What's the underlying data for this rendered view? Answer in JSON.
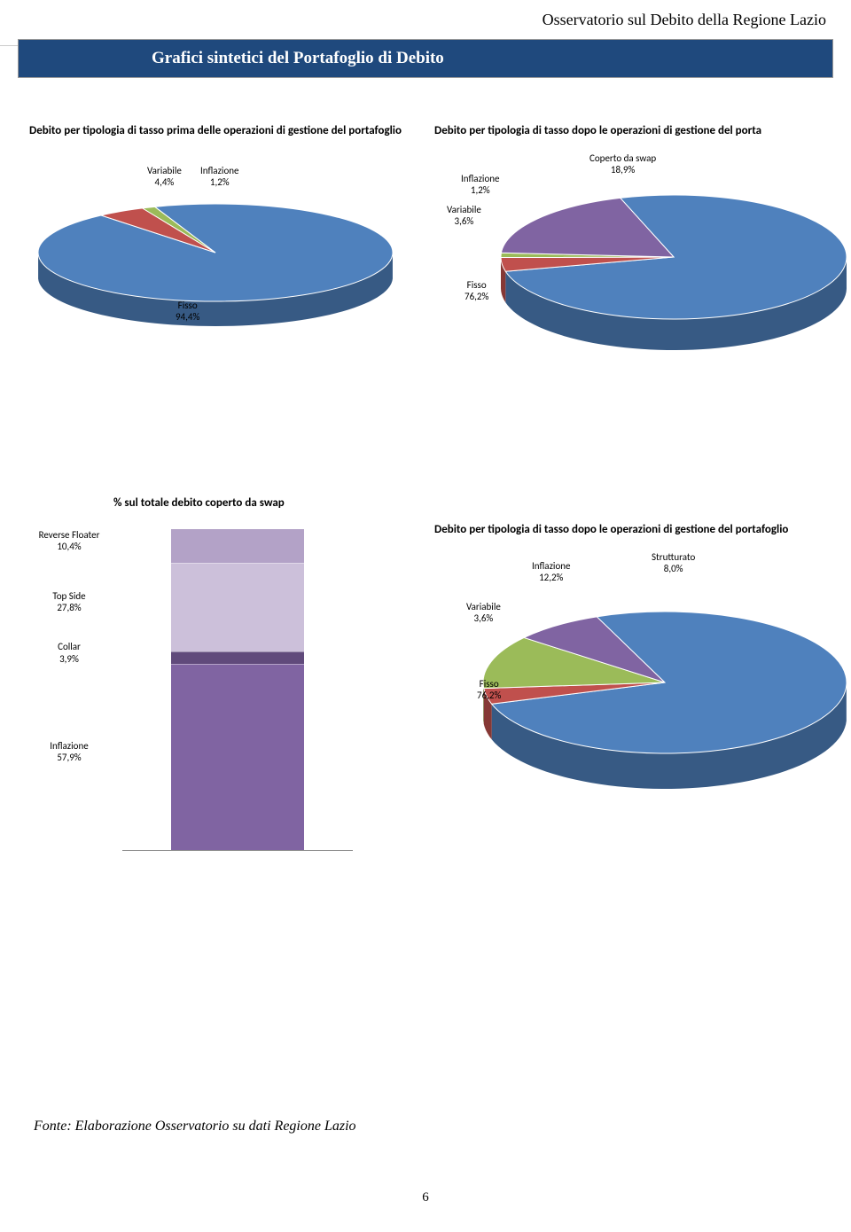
{
  "header": "Osservatorio sul Debito della Regione Lazio",
  "banner": "Grafici sintetici del Portafoglio di Debito",
  "source": "Fonte: Elaborazione Osservatorio su dati Regione Lazio",
  "page_number": "6",
  "colors": {
    "fisso": "#4f81bd",
    "fisso_edge": "#385d8a",
    "variabile": "#c0504d",
    "variabile_edge": "#8c3836",
    "inflazione": "#9bbb59",
    "inflazione_edge": "#71893f",
    "swap": "#8064a2",
    "swap_edge": "#5c4776",
    "strutturato": "#8064a2",
    "reverse": "#b3a2c7",
    "topside": "#ccc0da",
    "collar": "#604a7b",
    "banner": "#1f497d"
  },
  "pie1": {
    "title": "Debito per tipologia di tasso prima delle operazioni di gestione del portafoglio",
    "type": "pie-3d",
    "labels": {
      "variabile": {
        "name": "Variabile",
        "pct": "4,4%"
      },
      "inflazione": {
        "name": "Inflazione",
        "pct": "1,2%"
      },
      "fisso": {
        "name": "Fisso",
        "pct": "94,4%"
      }
    },
    "slices": [
      {
        "key": "fisso",
        "value": 94.4
      },
      {
        "key": "variabile",
        "value": 4.4
      },
      {
        "key": "inflazione",
        "value": 1.2
      }
    ]
  },
  "pie2": {
    "title": "Debito per tipologia di tasso dopo le operazioni di gestione del porta",
    "type": "pie-3d",
    "labels": {
      "inflazione": {
        "name": "Inflazione",
        "pct": "1,2%"
      },
      "variabile": {
        "name": "Variabile",
        "pct": "3,6%"
      },
      "fisso": {
        "name": "Fisso",
        "pct": "76,2%"
      },
      "swap": {
        "name": "Coperto da swap",
        "pct": "18,9%"
      }
    },
    "slices": [
      {
        "key": "fisso",
        "value": 76.2
      },
      {
        "key": "variabile",
        "value": 3.6
      },
      {
        "key": "inflazione",
        "value": 1.2
      },
      {
        "key": "swap",
        "value": 18.9
      }
    ]
  },
  "stack": {
    "title": "% sul totale debito coperto da swap",
    "type": "stacked-bar",
    "segments": [
      {
        "key": "reverse",
        "label": "Reverse Floater",
        "pct_txt": "10,4%",
        "value": 10.4
      },
      {
        "key": "topside",
        "label": "Top Side",
        "pct_txt": "27,8%",
        "value": 27.8
      },
      {
        "key": "collar",
        "label": "Collar",
        "pct_txt": "3,9%",
        "value": 3.9
      },
      {
        "key": "inflazione_s",
        "label": "Inflazione",
        "pct_txt": "57,9%",
        "value": 57.9
      }
    ]
  },
  "pie3": {
    "title": "Debito per tipologia di tasso dopo le operazioni di gestione del portafoglio",
    "type": "pie-3d",
    "labels": {
      "inflazione": {
        "name": "Inflazione",
        "pct": "12,2%"
      },
      "variabile": {
        "name": "Variabile",
        "pct": "3,6%"
      },
      "fisso": {
        "name": "Fisso",
        "pct": "76,2%"
      },
      "strutturato": {
        "name": "Strutturato",
        "pct": "8,0%"
      }
    },
    "slices": [
      {
        "key": "fisso",
        "value": 76.2
      },
      {
        "key": "variabile",
        "value": 3.6
      },
      {
        "key": "inflazione",
        "value": 12.2
      },
      {
        "key": "strutturato",
        "value": 8.0
      }
    ]
  }
}
